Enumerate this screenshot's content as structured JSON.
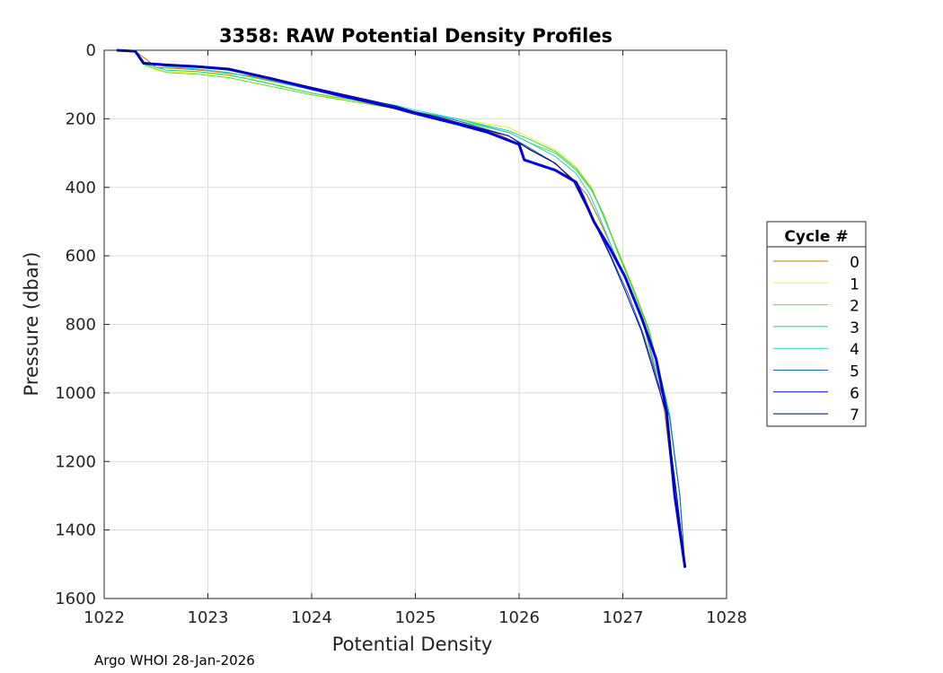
{
  "chart_data": {
    "type": "line",
    "title": "3358: RAW Potential Density Profiles",
    "xlabel": "Potential Density",
    "ylabel": "Pressure (dbar)",
    "xlim": [
      1022,
      1028
    ],
    "ylim": [
      0,
      1600
    ],
    "y_reversed": true,
    "xticks": [
      1022,
      1023,
      1024,
      1025,
      1026,
      1027,
      1028
    ],
    "yticks": [
      0,
      200,
      400,
      600,
      800,
      1000,
      1200,
      1400,
      1600
    ],
    "grid": true,
    "legend_title": "Cycle #",
    "legend_position": "right-outside",
    "series": [
      {
        "name": "0",
        "color": "#c07000",
        "x": [
          1022.12,
          1022.3,
          1022.4,
          1022.5,
          1022.8,
          1023.0,
          1023.4,
          1023.8,
          1024.0,
          1024.4,
          1024.8,
          1025.0,
          1025.4,
          1025.8,
          1026.05,
          1026.3,
          1026.5,
          1026.65,
          1026.75,
          1026.9,
          1027.05,
          1027.2,
          1027.3,
          1027.4,
          1027.5,
          1027.6
        ],
        "y": [
          0,
          3,
          25,
          50,
          55,
          60,
          75,
          100,
          115,
          145,
          170,
          185,
          210,
          245,
          280,
          320,
          370,
          420,
          480,
          580,
          680,
          800,
          920,
          1050,
          1300,
          1510
        ]
      },
      {
        "name": "1",
        "color": "#f0f020",
        "x": [
          1022.12,
          1022.3,
          1022.38,
          1022.5,
          1022.8,
          1023.0,
          1023.4,
          1023.8,
          1024.0,
          1024.4,
          1024.8,
          1025.0,
          1025.4,
          1025.9,
          1026.1,
          1026.35,
          1026.55,
          1026.7,
          1026.8,
          1026.95,
          1027.1,
          1027.25,
          1027.35,
          1027.45,
          1027.55,
          1027.6
        ],
        "y": [
          0,
          3,
          30,
          60,
          65,
          68,
          82,
          110,
          125,
          150,
          170,
          180,
          200,
          225,
          255,
          290,
          340,
          400,
          470,
          580,
          690,
          810,
          930,
          1060,
          1300,
          1510
        ]
      },
      {
        "name": "2",
        "color": "#60e020",
        "x": [
          1022.12,
          1022.3,
          1022.4,
          1022.6,
          1022.9,
          1023.2,
          1023.6,
          1024.0,
          1024.4,
          1024.8,
          1025.0,
          1025.4,
          1025.9,
          1026.1,
          1026.35,
          1026.55,
          1026.7,
          1026.82,
          1026.95,
          1027.1,
          1027.25,
          1027.35,
          1027.45,
          1027.55,
          1027.6
        ],
        "y": [
          0,
          3,
          45,
          65,
          70,
          80,
          105,
          130,
          150,
          170,
          185,
          205,
          240,
          270,
          300,
          350,
          410,
          480,
          590,
          700,
          820,
          940,
          1070,
          1300,
          1510
        ]
      },
      {
        "name": "3",
        "color": "#20d080",
        "x": [
          1022.12,
          1022.3,
          1022.38,
          1022.6,
          1022.9,
          1023.2,
          1023.6,
          1024.0,
          1024.4,
          1024.8,
          1025.0,
          1025.4,
          1025.9,
          1026.1,
          1026.35,
          1026.55,
          1026.7,
          1026.8,
          1026.95,
          1027.1,
          1027.25,
          1027.35,
          1027.45,
          1027.55,
          1027.6
        ],
        "y": [
          0,
          3,
          40,
          58,
          62,
          72,
          98,
          125,
          145,
          165,
          180,
          200,
          235,
          260,
          295,
          345,
          405,
          475,
          585,
          695,
          815,
          935,
          1060,
          1300,
          1510
        ]
      },
      {
        "name": "4",
        "color": "#20d0d0",
        "x": [
          1022.12,
          1022.3,
          1022.38,
          1022.6,
          1022.9,
          1023.2,
          1023.6,
          1024.0,
          1024.4,
          1024.8,
          1025.0,
          1025.4,
          1025.9,
          1026.1,
          1026.35,
          1026.55,
          1026.68,
          1026.78,
          1026.92,
          1027.08,
          1027.22,
          1027.33,
          1027.45,
          1027.55,
          1027.6
        ],
        "y": [
          0,
          3,
          35,
          48,
          55,
          65,
          90,
          115,
          140,
          160,
          175,
          200,
          240,
          270,
          310,
          360,
          420,
          490,
          595,
          700,
          820,
          940,
          1065,
          1300,
          1510
        ]
      },
      {
        "name": "5",
        "color": "#1060e0",
        "x": [
          1022.12,
          1022.3,
          1022.38,
          1022.6,
          1022.9,
          1023.2,
          1023.6,
          1024.0,
          1024.4,
          1024.8,
          1025.0,
          1025.4,
          1025.9,
          1026.1,
          1026.35,
          1026.55,
          1026.65,
          1026.75,
          1026.9,
          1027.05,
          1027.2,
          1027.32,
          1027.45,
          1027.55,
          1027.6
        ],
        "y": [
          0,
          3,
          38,
          45,
          50,
          58,
          85,
          112,
          140,
          165,
          180,
          205,
          250,
          285,
          330,
          390,
          450,
          510,
          610,
          710,
          830,
          950,
          1070,
          1300,
          1510
        ]
      },
      {
        "name": "6",
        "color": "#0000e0",
        "thick": true,
        "x": [
          1022.12,
          1022.3,
          1022.38,
          1022.6,
          1022.9,
          1023.2,
          1023.6,
          1024.0,
          1024.4,
          1024.8,
          1025.0,
          1025.4,
          1025.7,
          1026.0,
          1026.05,
          1026.35,
          1026.55,
          1026.62,
          1026.72,
          1026.88,
          1027.02,
          1027.18,
          1027.32,
          1027.42,
          1027.5,
          1027.6
        ],
        "y": [
          0,
          3,
          38,
          43,
          48,
          55,
          82,
          112,
          140,
          168,
          185,
          215,
          240,
          275,
          320,
          350,
          385,
          430,
          500,
          580,
          660,
          780,
          900,
          1050,
          1300,
          1510
        ]
      },
      {
        "name": "7",
        "color": "#000080",
        "x": [
          1022.12,
          1022.3,
          1022.38,
          1022.6,
          1022.9,
          1023.2,
          1023.6,
          1024.0,
          1024.4,
          1024.8,
          1025.0,
          1025.4,
          1025.9,
          1026.1,
          1026.35,
          1026.52,
          1026.62,
          1026.72,
          1026.88,
          1027.02,
          1027.18,
          1027.3,
          1027.42,
          1027.52,
          1027.6
        ],
        "y": [
          0,
          3,
          38,
          42,
          46,
          55,
          80,
          108,
          135,
          162,
          180,
          210,
          250,
          290,
          330,
          380,
          440,
          500,
          600,
          700,
          820,
          940,
          1060,
          1300,
          1510
        ]
      }
    ]
  },
  "footer": "Argo WHOI 28-Jan-2026"
}
